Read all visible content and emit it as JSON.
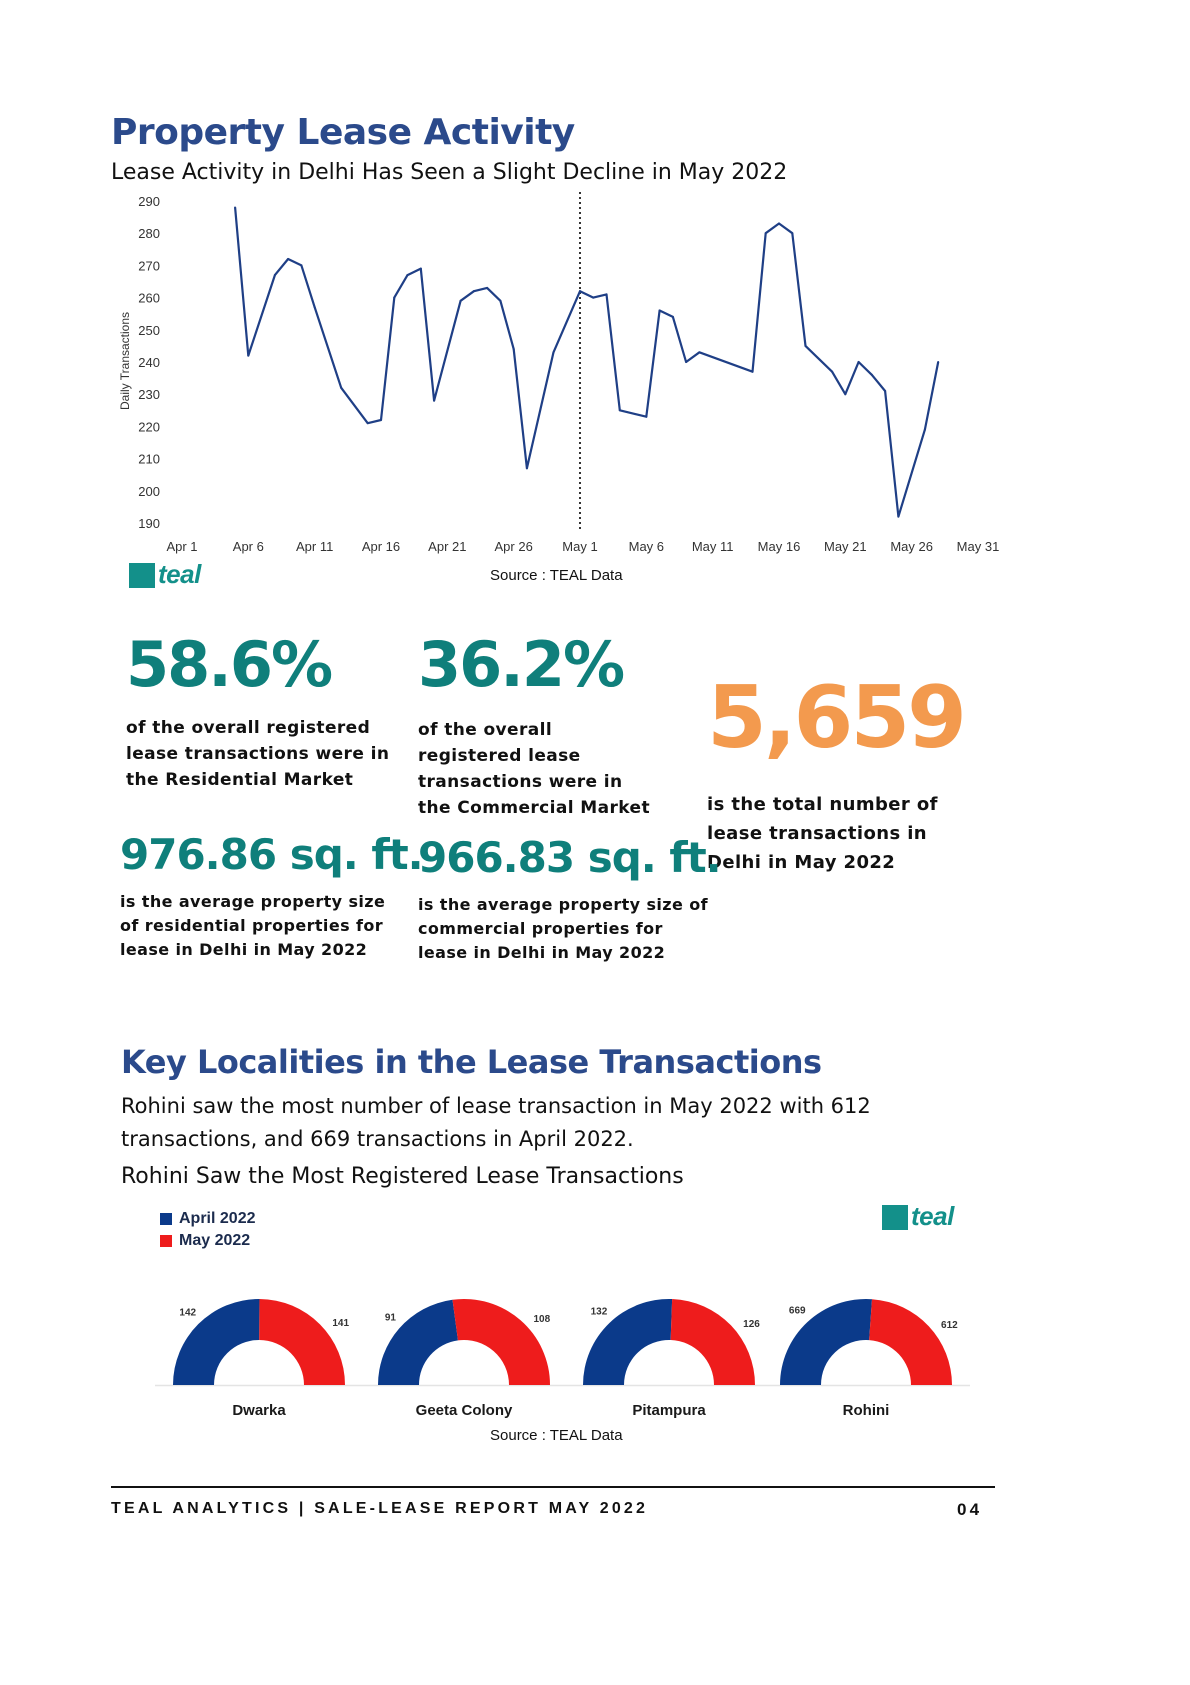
{
  "section1": {
    "title": "Property Lease Activity",
    "subtitle": "Lease Activity in Delhi Has Seen a Slight Decline in May 2022",
    "source": "Source : TEAL Data"
  },
  "logo": {
    "text": "teal",
    "color": "#13908a"
  },
  "chart_data": [
    {
      "type": "line",
      "ylabel": "Daily Transactions",
      "ylim": [
        190,
        290
      ],
      "yticks": [
        290,
        280,
        270,
        260,
        250,
        240,
        230,
        220,
        210,
        200,
        190
      ],
      "xticks": [
        "Apr 1",
        "Apr 6",
        "Apr 11",
        "Apr 16",
        "Apr 21",
        "Apr 26",
        "May 1",
        "May 6",
        "May 11",
        "May 16",
        "May 21",
        "May 26",
        "May 31"
      ],
      "divider_at_day": 31,
      "series_color": "#1f3f86",
      "points": [
        [
          5,
          288
        ],
        [
          6,
          242
        ],
        [
          8,
          267
        ],
        [
          9,
          272
        ],
        [
          10,
          270
        ],
        [
          11,
          257
        ],
        [
          13,
          232
        ],
        [
          15,
          221
        ],
        [
          16,
          222
        ],
        [
          17,
          260
        ],
        [
          18,
          267
        ],
        [
          19,
          269
        ],
        [
          20,
          228
        ],
        [
          22,
          259
        ],
        [
          23,
          262
        ],
        [
          24,
          263
        ],
        [
          25,
          259
        ],
        [
          26,
          244
        ],
        [
          27,
          207
        ],
        [
          29,
          243
        ],
        [
          31,
          262
        ],
        [
          32,
          260
        ],
        [
          33,
          261
        ],
        [
          34,
          225
        ],
        [
          36,
          223
        ],
        [
          37,
          256
        ],
        [
          38,
          254
        ],
        [
          39,
          240
        ],
        [
          40,
          243
        ],
        [
          44,
          237
        ],
        [
          45,
          280
        ],
        [
          46,
          283
        ],
        [
          47,
          280
        ],
        [
          48,
          245
        ],
        [
          50,
          237
        ],
        [
          51,
          230
        ],
        [
          52,
          240
        ],
        [
          53,
          236
        ],
        [
          54,
          231
        ],
        [
          55,
          192
        ],
        [
          57,
          219
        ],
        [
          58,
          240
        ]
      ]
    },
    {
      "type": "donut",
      "title": "Rohini Saw the Most Registered Lease Transactions",
      "legend": [
        "April 2022",
        "May 2022"
      ],
      "colors": [
        "#0b3a8a",
        "#ee1c1c"
      ],
      "categories": [
        "Dwarka",
        "Geeta Colony",
        "Pitampura",
        "Rohini"
      ],
      "series": [
        {
          "name": "April 2022",
          "values": [
            142,
            91,
            132,
            669
          ]
        },
        {
          "name": "May 2022",
          "values": [
            141,
            108,
            126,
            612
          ]
        }
      ]
    }
  ],
  "stats": {
    "res_pct": "58.6%",
    "res_pct_text": "of the overall registered lease transactions were in the Residential Market",
    "com_pct": "36.2%",
    "com_pct_text": "of the overall registered lease transactions were in the Commercial Market",
    "total": "5,659",
    "total_text": "is the total number of lease transactions in Delhi in May 2022",
    "res_size": "976.86 sq. ft.",
    "res_size_text": "is the average property size of residential properties for lease in Delhi in May 2022",
    "com_size": "966.83 sq. ft.",
    "com_size_text": "is the average property size of commercial properties for lease in Delhi in May 2022"
  },
  "section2": {
    "title": "Key Localities in the Lease Transactions",
    "paragraph": "Rohini saw the most number of lease transaction in May 2022 with 612 transactions, and 669 transactions in April 2022.",
    "chart_title": "Rohini Saw the Most Registered Lease Transactions",
    "source": "Source : TEAL Data"
  },
  "footer": {
    "left": "TEAL ANALYTICS | SALE-LEASE REPORT MAY 2022",
    "page": "04"
  }
}
